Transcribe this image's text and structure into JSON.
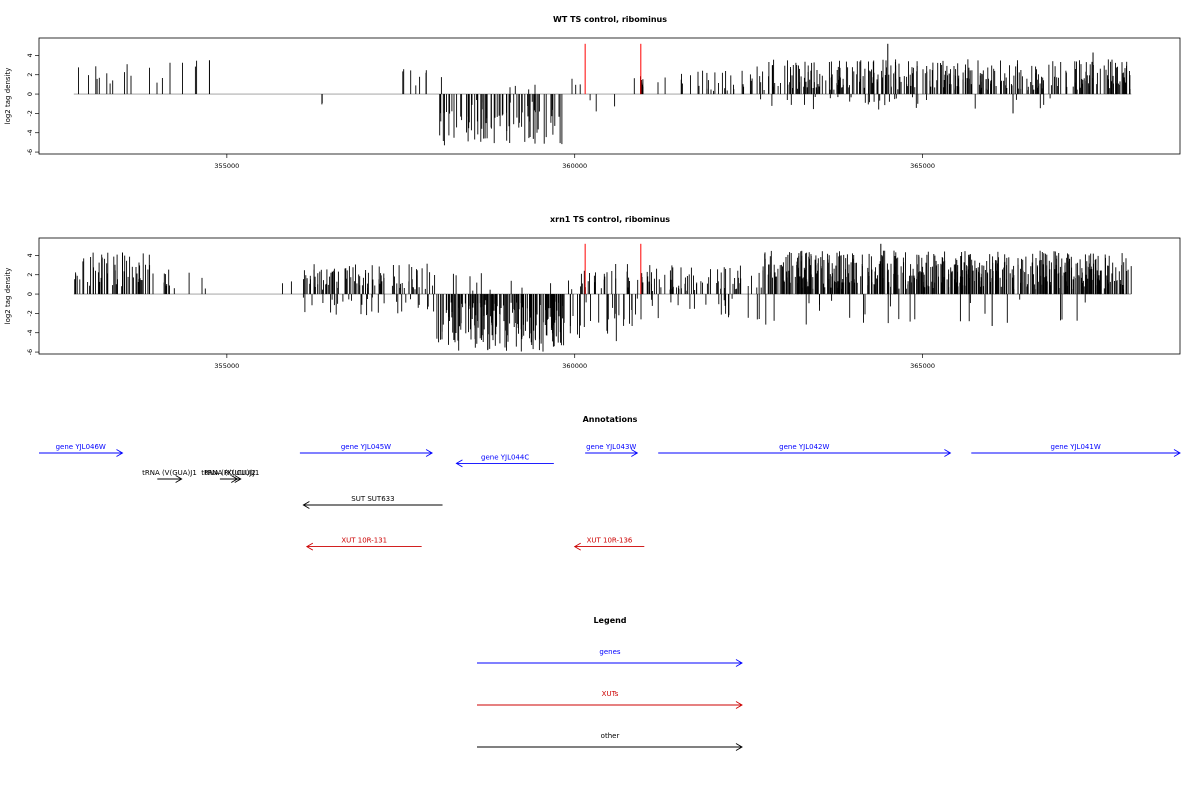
{
  "chart_data": [
    {
      "type": "bar",
      "title": "WT TS control, ribominus",
      "xlabel": "",
      "ylabel": "log2 tag density",
      "xlim": [
        352300,
        368700
      ],
      "ylim": [
        -6.2,
        5.8
      ],
      "x_ticks": [
        355000,
        360000,
        365000
      ],
      "y_ticks": [
        -6,
        -4,
        -2,
        0,
        2,
        4
      ],
      "baseline_range": [
        352800,
        368000
      ],
      "markers": {
        "x": [
          360150,
          360950
        ],
        "color": "#ff0000",
        "top": 5.2
      },
      "bar_color": "#000000",
      "segments": [
        {
          "from": 352800,
          "to": 354800,
          "n": 18,
          "lo": 0.5,
          "hi": 3.5,
          "seed": 3,
          "dir": 1
        },
        {
          "from": 356200,
          "to": 356900,
          "n": 2,
          "lo": -1.8,
          "hi": -0.8,
          "seed": 5,
          "dir": -1
        },
        {
          "from": 357500,
          "to": 358100,
          "n": 8,
          "lo": 0.8,
          "hi": 2.6,
          "seed": 7,
          "dir": 1
        },
        {
          "from": 358000,
          "to": 359850,
          "n": 80,
          "lo": -5.3,
          "hi": -0.5,
          "seed": 11,
          "dir": -1
        },
        {
          "from": 359050,
          "to": 359450,
          "n": 4,
          "lo": 0.3,
          "hi": 1.5,
          "seed": 13,
          "dir": 1
        },
        {
          "from": 359900,
          "to": 360150,
          "n": 3,
          "lo": 0.6,
          "hi": 1.8,
          "seed": 17,
          "dir": 1
        },
        {
          "from": 360200,
          "to": 360650,
          "n": 3,
          "lo": -1.8,
          "hi": -0.4,
          "seed": 19,
          "dir": -1
        },
        {
          "from": 360800,
          "to": 361500,
          "n": 9,
          "lo": 0.4,
          "hi": 2.0,
          "seed": 23,
          "dir": 1
        },
        {
          "from": 361500,
          "to": 362600,
          "n": 28,
          "lo": 0.3,
          "hi": 2.5,
          "seed": 29,
          "dir": 1
        },
        {
          "from": 362600,
          "to": 368000,
          "n": 330,
          "lo": 0.4,
          "hi": 3.6,
          "seed": 31,
          "dir": 1
        },
        {
          "from": 362600,
          "to": 368000,
          "n": 30,
          "lo": -1.6,
          "hi": -0.3,
          "seed": 37,
          "dir": -1
        }
      ],
      "peaks": [
        [
          364500,
          5.2
        ],
        [
          366300,
          -2.0
        ],
        [
          367450,
          4.3
        ],
        [
          354750,
          3.5
        ]
      ]
    },
    {
      "type": "bar",
      "title": "xrn1 TS control, ribominus",
      "xlabel": "",
      "ylabel": "log2 tag density",
      "xlim": [
        352300,
        368700
      ],
      "ylim": [
        -6.2,
        5.8
      ],
      "x_ticks": [
        355000,
        360000,
        365000
      ],
      "y_ticks": [
        -6,
        -4,
        -2,
        0,
        2,
        4
      ],
      "baseline_range": [
        352800,
        368000
      ],
      "markers": {
        "x": [
          360150,
          360950
        ],
        "color": "#ff0000",
        "top": 5.2
      },
      "bar_color": "#000000",
      "segments": [
        {
          "from": 352800,
          "to": 353900,
          "n": 55,
          "lo": 0.8,
          "hi": 4.3,
          "seed": 41,
          "dir": 1
        },
        {
          "from": 353900,
          "to": 354800,
          "n": 12,
          "lo": 0.5,
          "hi": 2.6,
          "seed": 43,
          "dir": 1
        },
        {
          "from": 355800,
          "to": 356300,
          "n": 4,
          "lo": 0.5,
          "hi": 2.0,
          "seed": 47,
          "dir": 1
        },
        {
          "from": 356100,
          "to": 358000,
          "n": 90,
          "lo": 0.4,
          "hi": 3.2,
          "seed": 53,
          "dir": 1
        },
        {
          "from": 356100,
          "to": 358000,
          "n": 30,
          "lo": -2.2,
          "hi": -0.3,
          "seed": 59,
          "dir": -1
        },
        {
          "from": 358000,
          "to": 359850,
          "n": 180,
          "lo": -6.0,
          "hi": -0.5,
          "seed": 61,
          "dir": -1
        },
        {
          "from": 358200,
          "to": 359700,
          "n": 10,
          "lo": 0.3,
          "hi": 2.8,
          "seed": 67,
          "dir": 1
        },
        {
          "from": 359900,
          "to": 360800,
          "n": 25,
          "lo": 0.4,
          "hi": 3.2,
          "seed": 71,
          "dir": 1
        },
        {
          "from": 359900,
          "to": 360900,
          "n": 25,
          "lo": -5.0,
          "hi": -0.4,
          "seed": 73,
          "dir": -1
        },
        {
          "from": 360900,
          "to": 362700,
          "n": 70,
          "lo": 0.3,
          "hi": 3.0,
          "seed": 79,
          "dir": 1
        },
        {
          "from": 360900,
          "to": 362700,
          "n": 20,
          "lo": -3.2,
          "hi": -0.3,
          "seed": 83,
          "dir": -1
        },
        {
          "from": 362700,
          "to": 368000,
          "n": 520,
          "lo": 0.5,
          "hi": 4.5,
          "seed": 89,
          "dir": 1
        },
        {
          "from": 362700,
          "to": 368000,
          "n": 25,
          "lo": -3.2,
          "hi": -0.3,
          "seed": 97,
          "dir": -1
        }
      ],
      "peaks": [
        [
          364400,
          5.2
        ],
        [
          366000,
          -3.3
        ],
        [
          353500,
          4.3
        ],
        [
          358750,
          -5.8
        ]
      ]
    }
  ],
  "annotations": {
    "title": "Annotations",
    "xlim": [
      352300,
      368700
    ],
    "features": [
      {
        "label": "gene YJL046W",
        "kind": "gene",
        "color": "#0000ff",
        "start": 352300,
        "end": 353500,
        "strand": "+",
        "row": 0
      },
      {
        "label": "tRNA (V(GUA)J1",
        "kind": "other",
        "color": "#000000",
        "start": 354000,
        "end": 354350,
        "strand": "+",
        "row": 1
      },
      {
        "label": "tRNA (R(UCU)J2",
        "kind": "other",
        "color": "#000000",
        "start": 354900,
        "end": 355150,
        "strand": "+",
        "row": 1
      },
      {
        "label": "tRNA (K(UUU)J1",
        "kind": "other",
        "color": "#000000",
        "start": 354950,
        "end": 355200,
        "strand": "+",
        "row": 1
      },
      {
        "label": "gene YJL045W",
        "kind": "gene",
        "color": "#0000ff",
        "start": 356050,
        "end": 357950,
        "strand": "+",
        "row": 0
      },
      {
        "label": "gene YJL044C",
        "kind": "gene",
        "color": "#0000ff",
        "start": 358300,
        "end": 359700,
        "strand": "-",
        "row": 0.4
      },
      {
        "label": "gene YJL043W",
        "kind": "gene",
        "color": "#0000ff",
        "start": 360150,
        "end": 360900,
        "strand": "+",
        "row": 0
      },
      {
        "label": "gene YJL042W",
        "kind": "gene",
        "color": "#0000ff",
        "start": 361200,
        "end": 365400,
        "strand": "+",
        "row": 0
      },
      {
        "label": "gene YJL041W",
        "kind": "gene",
        "color": "#0000ff",
        "start": 365700,
        "end": 368700,
        "strand": "+",
        "row": 0
      },
      {
        "label": "SUT SUT633",
        "kind": "other",
        "color": "#000000",
        "start": 356100,
        "end": 358100,
        "strand": "-",
        "row": 2
      },
      {
        "label": "XUT 10R-131",
        "kind": "xut",
        "color": "#cc0000",
        "start": 356150,
        "end": 357800,
        "strand": "-",
        "row": 3.6
      },
      {
        "label": "XUT 10R-136",
        "kind": "xut",
        "color": "#cc0000",
        "start": 360000,
        "end": 361000,
        "strand": "-",
        "row": 3.6
      }
    ]
  },
  "legend": {
    "title": "Legend",
    "items": [
      {
        "label": "genes",
        "color": "#0000ff"
      },
      {
        "label": "XUTs",
        "color": "#cc0000"
      },
      {
        "label": "other",
        "color": "#000000"
      }
    ]
  }
}
